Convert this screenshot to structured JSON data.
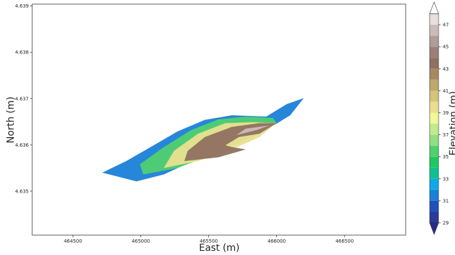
{
  "chart_data": {
    "type": "contour",
    "xlabel": "East (m)",
    "ylabel": "North (m)",
    "xlim": [
      464200,
      466950
    ],
    "ylim": [
      4.63405,
      4.63904
    ],
    "xticks": [
      464500,
      465000,
      465500,
      466000,
      466500
    ],
    "yticks": [
      4.635,
      4.636,
      4.637,
      4.638,
      4.639
    ],
    "contours": [
      {
        "level": 31,
        "points": [
          [
            464716,
            4.6354
          ],
          [
            464968,
            4.63521
          ],
          [
            465169,
            4.63536
          ],
          [
            465420,
            4.6357
          ],
          [
            465672,
            4.63602
          ],
          [
            465923,
            4.63632
          ],
          [
            466100,
            4.63664
          ],
          [
            466200,
            4.63701
          ],
          [
            466074,
            4.63688
          ],
          [
            465923,
            4.63661
          ],
          [
            465672,
            4.63664
          ],
          [
            465471,
            4.63654
          ],
          [
            465270,
            4.63629
          ],
          [
            465094,
            4.63599
          ],
          [
            464892,
            4.63565
          ]
        ]
      },
      {
        "level": 35,
        "points": [
          [
            465018,
            4.63536
          ],
          [
            465270,
            4.6355
          ],
          [
            465571,
            4.63584
          ],
          [
            465823,
            4.63617
          ],
          [
            465999,
            4.63647
          ],
          [
            465974,
            4.63658
          ],
          [
            465773,
            4.63661
          ],
          [
            465571,
            4.63655
          ],
          [
            465370,
            4.63632
          ],
          [
            465169,
            4.63595
          ],
          [
            464993,
            4.63558
          ]
        ]
      },
      {
        "level": 39,
        "points": [
          [
            465169,
            4.6355
          ],
          [
            465420,
            4.63565
          ],
          [
            465672,
            4.6359
          ],
          [
            465873,
            4.63617
          ],
          [
            465999,
            4.63647
          ],
          [
            465823,
            4.63649
          ],
          [
            465622,
            4.63647
          ],
          [
            465420,
            4.63624
          ],
          [
            465244,
            4.63587
          ]
        ]
      },
      {
        "level": 43,
        "points": [
          [
            465320,
            4.63565
          ],
          [
            465571,
            4.63573
          ],
          [
            465773,
            4.6359
          ],
          [
            465672,
            4.63595
          ],
          [
            465622,
            4.63599
          ],
          [
            465722,
            4.63617
          ],
          [
            465873,
            4.63624
          ],
          [
            465999,
            4.63647
          ],
          [
            465873,
            4.63647
          ],
          [
            465672,
            4.63639
          ],
          [
            465471,
            4.63617
          ],
          [
            465345,
            4.63587
          ]
        ]
      },
      {
        "level": 46,
        "points": [
          [
            465703,
            4.63621
          ],
          [
            465853,
            4.63632
          ],
          [
            465949,
            4.63642
          ],
          [
            465773,
            4.63635
          ]
        ]
      }
    ],
    "colorbar": {
      "label": "Elevation (m)",
      "levels": [
        29,
        30,
        31,
        32,
        33,
        34,
        35,
        36,
        37,
        38,
        39,
        40,
        41,
        42,
        43,
        44,
        45,
        46,
        47,
        48
      ],
      "colors": [
        "#2a3a9c",
        "#2050b8",
        "#1a80d8",
        "#10a8e8",
        "#10c090",
        "#20c860",
        "#50d070",
        "#90e080",
        "#c0ec90",
        "#f0f898",
        "#e8e090",
        "#d4c47c",
        "#c0a86c",
        "#a88860",
        "#907060",
        "#9c8078",
        "#b09c98",
        "#ccbcb8",
        "#e8e0de"
      ],
      "under_color": "#2a2a88",
      "over_color": "#ffffff",
      "ticks": [
        29,
        31,
        33,
        35,
        37,
        39,
        41,
        43,
        45,
        47
      ]
    }
  }
}
